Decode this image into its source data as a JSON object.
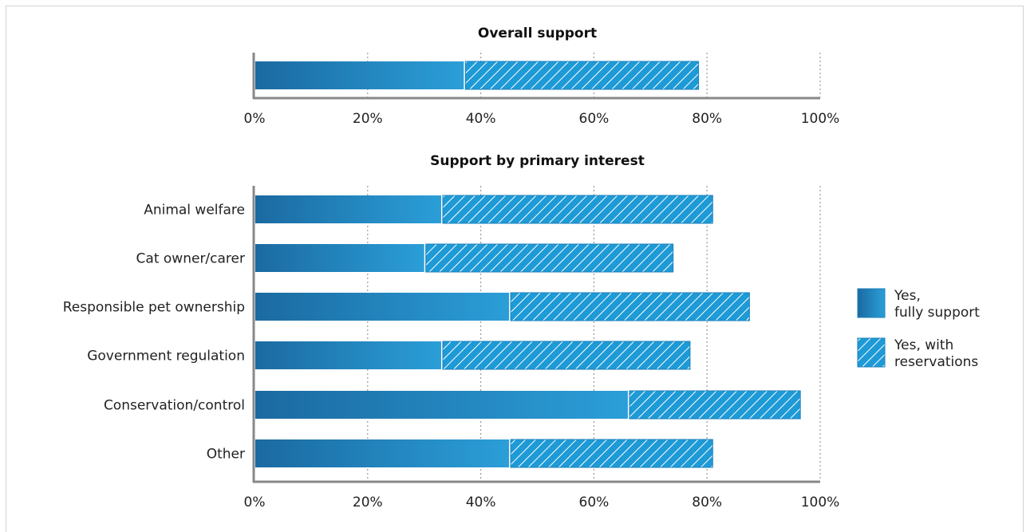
{
  "chart_data": [
    {
      "type": "bar",
      "orientation": "horizontal",
      "stacked": true,
      "title": "Overall support",
      "categories": [
        ""
      ],
      "series": [
        {
          "name": "Yes, fully support",
          "values": [
            37
          ]
        },
        {
          "name": "Yes, with reservations",
          "values": [
            41.5
          ]
        }
      ],
      "xlim": [
        0,
        100
      ],
      "xticks": [
        "0%",
        "20%",
        "40%",
        "60%",
        "80%",
        "100%"
      ],
      "grid": true
    },
    {
      "type": "bar",
      "orientation": "horizontal",
      "stacked": true,
      "title": "Support by primary interest",
      "categories": [
        "Animal welfare",
        "Cat owner/carer",
        "Responsible pet ownership",
        "Government regulation",
        "Conservation/control",
        "Other"
      ],
      "series": [
        {
          "name": "Yes, fully support",
          "values": [
            33,
            30,
            45,
            33,
            66,
            45
          ]
        },
        {
          "name": "Yes, with reservations",
          "values": [
            48,
            44,
            42.5,
            44,
            30.5,
            36
          ]
        }
      ],
      "xlim": [
        0,
        100
      ],
      "xticks": [
        "0%",
        "20%",
        "40%",
        "60%",
        "80%",
        "100%"
      ],
      "grid": true
    }
  ],
  "legend": {
    "placement": "right",
    "items": [
      {
        "line1": "Yes,",
        "line2": "fully support",
        "pattern": "solid-gradient"
      },
      {
        "line1": "Yes, with",
        "line2": "reservations",
        "pattern": "hatched"
      }
    ]
  },
  "colors": {
    "full_dark": "#1b6aa1",
    "full_light": "#2b9ed8",
    "reservations": "#1e9ad6",
    "hatch": "#ffffff",
    "axis": "#888888",
    "grid": "#999999"
  }
}
